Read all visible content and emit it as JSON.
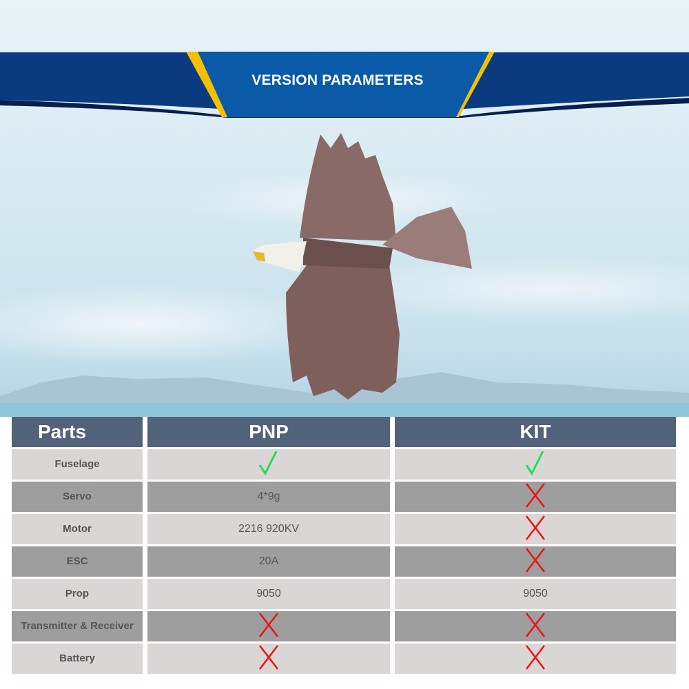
{
  "banner": {
    "title": "VERSION PARAMETERS"
  },
  "colors": {
    "banner_dark": "#0a3a7f",
    "banner_center": "#0a5aa8",
    "banner_accent": "#f5c000",
    "header_bg": "#52627a",
    "row_light": "#dad6d6",
    "row_dark": "#9e9e9e",
    "check": "#22dd55",
    "cross": "#ee1111"
  },
  "table": {
    "headers": [
      "Parts",
      "PNP",
      "KIT"
    ],
    "rows": [
      {
        "part": "Fuselage",
        "pnp": {
          "icon": "check-icon"
        },
        "kit": {
          "icon": "check-icon"
        }
      },
      {
        "part": "Servo",
        "pnp": {
          "text": "4*9g"
        },
        "kit": {
          "icon": "cross-icon"
        }
      },
      {
        "part": "Motor",
        "pnp": {
          "text": "2216 920KV"
        },
        "kit": {
          "icon": "cross-icon"
        }
      },
      {
        "part": "ESC",
        "pnp": {
          "text": "20A"
        },
        "kit": {
          "icon": "cross-icon"
        }
      },
      {
        "part": "Prop",
        "pnp": {
          "text": "9050"
        },
        "kit": {
          "text": "9050"
        }
      },
      {
        "part": "Transmitter & Receiver",
        "pnp": {
          "icon": "cross-icon"
        },
        "kit": {
          "icon": "cross-icon"
        }
      },
      {
        "part": "Battery",
        "pnp": {
          "icon": "cross-icon"
        },
        "kit": {
          "icon": "cross-icon"
        }
      }
    ]
  }
}
